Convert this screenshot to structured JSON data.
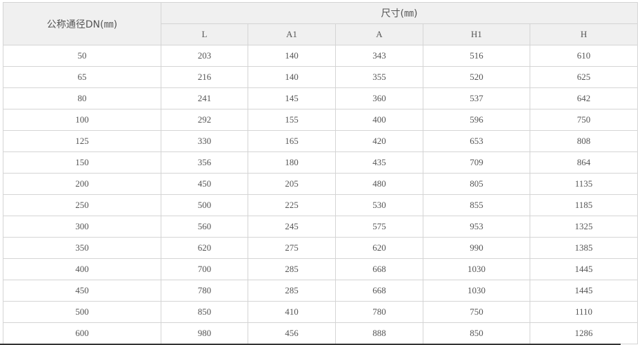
{
  "table": {
    "dn_header": "公称通径DN(㎜)",
    "group_header": "尺寸(㎜)",
    "columns": [
      "L",
      "A1",
      "A",
      "H1",
      "H"
    ],
    "rows": [
      [
        "50",
        "203",
        "140",
        "343",
        "516",
        "610"
      ],
      [
        "65",
        "216",
        "140",
        "355",
        "520",
        "625"
      ],
      [
        "80",
        "241",
        "145",
        "360",
        "537",
        "642"
      ],
      [
        "100",
        "292",
        "155",
        "400",
        "596",
        "750"
      ],
      [
        "125",
        "330",
        "165",
        "420",
        "653",
        "808"
      ],
      [
        "150",
        "356",
        "180",
        "435",
        "709",
        "864"
      ],
      [
        "200",
        "450",
        "205",
        "480",
        "805",
        "1135"
      ],
      [
        "250",
        "500",
        "225",
        "530",
        "855",
        "1185"
      ],
      [
        "300",
        "560",
        "245",
        "575",
        "953",
        "1325"
      ],
      [
        "350",
        "620",
        "275",
        "620",
        "990",
        "1385"
      ],
      [
        "400",
        "700",
        "285",
        "668",
        "1030",
        "1445"
      ],
      [
        "450",
        "780",
        "285",
        "668",
        "1030",
        "1445"
      ],
      [
        "500",
        "850",
        "410",
        "780",
        "750",
        "1110"
      ],
      [
        "600",
        "980",
        "456",
        "888",
        "850",
        "1286"
      ]
    ]
  }
}
